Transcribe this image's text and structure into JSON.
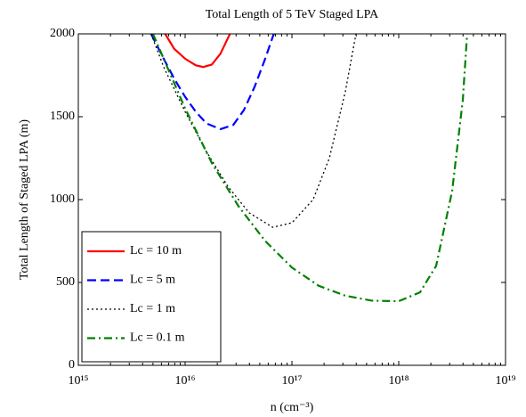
{
  "chart_data": {
    "type": "line",
    "title": "Total Length of 5 TeV Staged LPA",
    "x_label": "n (cm⁻³)",
    "y_label": "Total Length of Staged LPA (m)",
    "x_scale": "log",
    "xlim": [
      1000000000000000.0,
      1e+19
    ],
    "xticks": [
      {
        "value": 1000000000000000.0,
        "label": "10¹⁵"
      },
      {
        "value": 1e+16,
        "label": "10¹⁶"
      },
      {
        "value": 1e+17,
        "label": "10¹⁷"
      },
      {
        "value": 1e+18,
        "label": "10¹⁸"
      },
      {
        "value": 1e+19,
        "label": "10¹⁹"
      }
    ],
    "ylim": [
      0,
      2000
    ],
    "yticks": [
      0,
      500,
      1000,
      1500,
      2000
    ],
    "grid": false,
    "legend": "lower left",
    "series": [
      {
        "name": "Lc = 10 m",
        "color": "#ff0000",
        "dash": "solid",
        "x": [
          6500000000000000.0,
          7900000000000000.0,
          1e+16,
          1.26e+16,
          1.48e+16,
          1.78e+16,
          2.14e+16,
          2.63e+16
        ],
        "values": [
          2000,
          1910,
          1850,
          1810,
          1800,
          1815,
          1880,
          2000
        ]
      },
      {
        "name": "Lc = 5 m",
        "color": "#0000ff",
        "dash": "dashed",
        "x": [
          4800000000000000.0,
          6300000000000000.0,
          7900000000000000.0,
          1e+16,
          1.26e+16,
          1.58e+16,
          2.14e+16,
          2.82e+16,
          3.55e+16,
          4.47e+16,
          5.62e+16,
          6.76e+16
        ],
        "values": [
          2000,
          1850,
          1730,
          1620,
          1530,
          1460,
          1425,
          1450,
          1540,
          1680,
          1850,
          2000
        ]
      },
      {
        "name": "Lc = 1 m",
        "color": "#000000",
        "dash": "dotted",
        "x": [
          4800000000000000.0,
          6300000000000000.0,
          1e+16,
          1.58e+16,
          2.51e+16,
          3.98e+16,
          6.6e+16,
          1e+17,
          1.58e+17,
          2.24e+17,
          3.16e+17,
          3.98e+17
        ],
        "values": [
          2000,
          1800,
          1530,
          1290,
          1080,
          920,
          833,
          860,
          1000,
          1250,
          1650,
          2000
        ]
      },
      {
        "name": "Lc = 0.1 m",
        "color": "#008000",
        "dash": "dashdot",
        "x": [
          5000000000000000.0,
          1e+16,
          1.78e+16,
          3.16e+16,
          5.62e+16,
          1e+17,
          1.78e+17,
          3.16e+17,
          5.62e+17,
          1e+18,
          1.58e+18,
          2.24e+18,
          3.16e+18,
          3.98e+18,
          4.37e+18
        ],
        "values": [
          2000,
          1550,
          1220,
          960,
          750,
          590,
          480,
          420,
          390,
          387,
          440,
          600,
          1050,
          1600,
          2000
        ]
      }
    ]
  }
}
